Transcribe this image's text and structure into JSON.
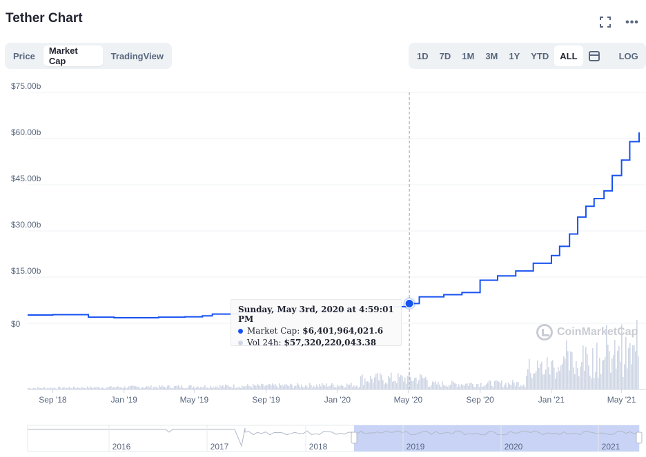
{
  "header": {
    "title": "Tether Chart"
  },
  "icons": {
    "expand": "expand-icon",
    "more": "more-options-icon",
    "calendar": "calendar-icon",
    "logo": "coinmarketcap-logo-icon"
  },
  "tabs": [
    {
      "label": "Price",
      "active": false
    },
    {
      "label": "Market Cap",
      "active": true
    },
    {
      "label": "TradingView",
      "active": false
    }
  ],
  "ranges": [
    {
      "label": "1D",
      "active": false
    },
    {
      "label": "7D",
      "active": false
    },
    {
      "label": "1M",
      "active": false
    },
    {
      "label": "3M",
      "active": false
    },
    {
      "label": "1Y",
      "active": false
    },
    {
      "label": "YTD",
      "active": false
    },
    {
      "label": "ALL",
      "active": true
    }
  ],
  "log_label": "LOG",
  "tooltip": {
    "date": "Sunday, May 3rd, 2020 at 4:59:01 PM",
    "market_cap_label": "Market Cap:",
    "market_cap_value": "$6,401,964,021.6",
    "volume_label": "Vol 24h:",
    "volume_value": "$57,320,220,043.38"
  },
  "watermark": "CoinMarketCap",
  "colors": {
    "line": "#1652f0",
    "volume": "#cfd6e4",
    "navigator_fill": "#c8d3f5",
    "grid": "#eff2f5"
  },
  "chart_data": {
    "type": "line",
    "title": "",
    "ylabel": "",
    "y_ticks": [
      "$0",
      "$15.00b",
      "$30.00b",
      "$45.00b",
      "$60.00b",
      "$75.00b"
    ],
    "ylim": [
      0,
      75
    ],
    "x_ticks": [
      "Sep '18",
      "Jan '19",
      "May '19",
      "Sep '19",
      "Jan '20",
      "May '20",
      "Sep '20",
      "Jan '21",
      "May '21"
    ],
    "series": [
      {
        "unit": "billion USD",
        "points": [
          [
            "2018-07-20",
            2.7
          ],
          [
            "2018-09-01",
            2.8
          ],
          [
            "2018-10-15",
            2.8
          ],
          [
            "2018-11-01",
            2.0
          ],
          [
            "2018-12-15",
            1.8
          ],
          [
            "2019-03-01",
            2.0
          ],
          [
            "2019-04-15",
            2.1
          ],
          [
            "2019-05-15",
            2.4
          ],
          [
            "2019-06-01",
            3.0
          ],
          [
            "2019-07-15",
            3.6
          ],
          [
            "2019-09-01",
            4.0
          ],
          [
            "2019-10-01",
            4.1
          ],
          [
            "2020-01-01",
            4.1
          ],
          [
            "2020-02-01",
            4.6
          ],
          [
            "2020-03-15",
            5.4
          ],
          [
            "2020-05-03",
            6.4
          ],
          [
            "2020-05-20",
            8.6
          ],
          [
            "2020-07-01",
            9.3
          ],
          [
            "2020-08-01",
            10.0
          ],
          [
            "2020-09-01",
            14.0
          ],
          [
            "2020-10-01",
            15.4
          ],
          [
            "2020-11-01",
            17.0
          ],
          [
            "2020-12-01",
            19.5
          ],
          [
            "2021-01-01",
            22.0
          ],
          [
            "2021-01-15",
            25.0
          ],
          [
            "2021-02-01",
            29.0
          ],
          [
            "2021-02-15",
            34.5
          ],
          [
            "2021-03-01",
            38.0
          ],
          [
            "2021-03-15",
            40.5
          ],
          [
            "2021-04-01",
            43.0
          ],
          [
            "2021-04-15",
            48.0
          ],
          [
            "2021-05-01",
            53.0
          ],
          [
            "2021-05-15",
            59.0
          ],
          [
            "2021-05-31",
            62.0
          ]
        ]
      }
    ],
    "highlight": {
      "date": "2020-05-03",
      "market_cap": 6401964021.6,
      "volume": 57320220043.38
    },
    "navigator": {
      "labels": [
        "2016",
        "2017",
        "2018",
        "2019",
        "2020",
        "2021"
      ],
      "selected_range": [
        "2018-07-20",
        "2021-05-31"
      ]
    }
  }
}
